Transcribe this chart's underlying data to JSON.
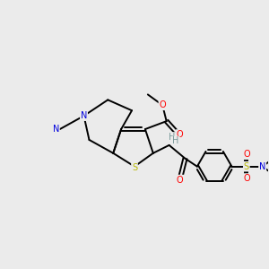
{
  "bg_color": "#ebebeb",
  "bond_color": "#000000",
  "bond_lw": 1.4,
  "atom_colors": {
    "S": "#b8b800",
    "N": "#0000dd",
    "O": "#ff0000",
    "H": "#7a9a9a",
    "C": "#000000"
  },
  "font_size": 7.0,
  "figsize": [
    3.0,
    3.0
  ],
  "dpi": 100
}
